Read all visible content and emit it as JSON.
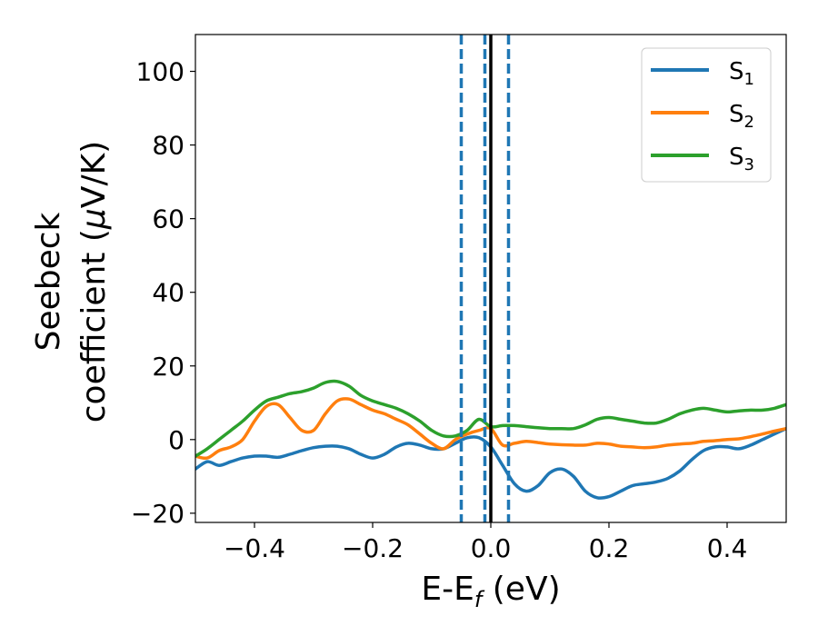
{
  "chart_data": {
    "type": "line",
    "xlabel": {
      "main": "E-E",
      "sub": "f",
      "unit": " (eV)"
    },
    "ylabel": {
      "line1": "Seebeck",
      "line2_pre": "coefficient  (",
      "mu": "μ",
      "line2_post": "V/K)"
    },
    "xlim": [
      -0.5,
      0.5
    ],
    "ylim": [
      -22.5,
      110
    ],
    "xticks": [
      -0.4,
      -0.2,
      0.0,
      0.2,
      0.4
    ],
    "xtick_labels": [
      "−0.4",
      "−0.2",
      "0.0",
      "0.2",
      "0.4"
    ],
    "yticks": [
      -20,
      0,
      20,
      40,
      60,
      80,
      100
    ],
    "ytick_labels": [
      "−20",
      "0",
      "20",
      "40",
      "60",
      "80",
      "100"
    ],
    "grid": false,
    "legend_position": "top-right",
    "vlines_dashed": [
      -0.05,
      -0.01,
      0.03
    ],
    "vline_solid": 0.0,
    "vline_dashed_color": "#1f77b4",
    "vline_solid_color": "#000000",
    "series": [
      {
        "name": "S",
        "sub": "1",
        "color": "#1f77b4",
        "points": [
          [
            -0.5,
            -8
          ],
          [
            -0.48,
            -6
          ],
          [
            -0.46,
            -7
          ],
          [
            -0.44,
            -6
          ],
          [
            -0.42,
            -5
          ],
          [
            -0.4,
            -4.5
          ],
          [
            -0.38,
            -4.5
          ],
          [
            -0.36,
            -4.8
          ],
          [
            -0.34,
            -4
          ],
          [
            -0.32,
            -3
          ],
          [
            -0.3,
            -2.2
          ],
          [
            -0.28,
            -1.8
          ],
          [
            -0.26,
            -1.8
          ],
          [
            -0.24,
            -2.5
          ],
          [
            -0.22,
            -4
          ],
          [
            -0.2,
            -5
          ],
          [
            -0.18,
            -4
          ],
          [
            -0.16,
            -2
          ],
          [
            -0.14,
            -1
          ],
          [
            -0.12,
            -1.5
          ],
          [
            -0.1,
            -2.5
          ],
          [
            -0.08,
            -2.5
          ],
          [
            -0.06,
            -1
          ],
          [
            -0.04,
            0.5
          ],
          [
            -0.02,
            0.5
          ],
          [
            0.0,
            -2
          ],
          [
            0.02,
            -7
          ],
          [
            0.04,
            -12
          ],
          [
            0.06,
            -14
          ],
          [
            0.08,
            -12.5
          ],
          [
            0.1,
            -9
          ],
          [
            0.12,
            -8
          ],
          [
            0.14,
            -10
          ],
          [
            0.16,
            -14
          ],
          [
            0.18,
            -15.8
          ],
          [
            0.2,
            -15.5
          ],
          [
            0.22,
            -14
          ],
          [
            0.24,
            -12.5
          ],
          [
            0.26,
            -12
          ],
          [
            0.28,
            -11.5
          ],
          [
            0.3,
            -10.5
          ],
          [
            0.32,
            -8.5
          ],
          [
            0.34,
            -5.5
          ],
          [
            0.36,
            -3
          ],
          [
            0.38,
            -2
          ],
          [
            0.4,
            -2
          ],
          [
            0.42,
            -2.5
          ],
          [
            0.44,
            -1.5
          ],
          [
            0.46,
            0
          ],
          [
            0.48,
            1.5
          ],
          [
            0.5,
            3
          ]
        ]
      },
      {
        "name": "S",
        "sub": "2",
        "color": "#ff7f0e",
        "points": [
          [
            -0.5,
            -4.5
          ],
          [
            -0.48,
            -5
          ],
          [
            -0.46,
            -3
          ],
          [
            -0.44,
            -2
          ],
          [
            -0.42,
            0
          ],
          [
            -0.4,
            5
          ],
          [
            -0.38,
            9
          ],
          [
            -0.36,
            9.5
          ],
          [
            -0.34,
            6
          ],
          [
            -0.32,
            2.5
          ],
          [
            -0.3,
            2.5
          ],
          [
            -0.28,
            7
          ],
          [
            -0.26,
            10.5
          ],
          [
            -0.24,
            11
          ],
          [
            -0.22,
            9.5
          ],
          [
            -0.2,
            8
          ],
          [
            -0.18,
            7
          ],
          [
            -0.16,
            5.5
          ],
          [
            -0.14,
            4
          ],
          [
            -0.12,
            1.5
          ],
          [
            -0.1,
            -1
          ],
          [
            -0.08,
            -2.5
          ],
          [
            -0.06,
            0
          ],
          [
            -0.04,
            1.5
          ],
          [
            -0.02,
            2.5
          ],
          [
            0.0,
            3
          ],
          [
            0.02,
            -1.5
          ],
          [
            0.04,
            -1
          ],
          [
            0.06,
            -0.5
          ],
          [
            0.08,
            -0.8
          ],
          [
            0.1,
            -1.2
          ],
          [
            0.14,
            -1.5
          ],
          [
            0.16,
            -1.5
          ],
          [
            0.18,
            -1
          ],
          [
            0.2,
            -1.2
          ],
          [
            0.22,
            -1.8
          ],
          [
            0.24,
            -2
          ],
          [
            0.26,
            -2.2
          ],
          [
            0.28,
            -2
          ],
          [
            0.3,
            -1.5
          ],
          [
            0.32,
            -1.2
          ],
          [
            0.34,
            -1
          ],
          [
            0.36,
            -0.5
          ],
          [
            0.38,
            -0.3
          ],
          [
            0.4,
            0
          ],
          [
            0.42,
            0.2
          ],
          [
            0.44,
            0.8
          ],
          [
            0.46,
            1.5
          ],
          [
            0.48,
            2.3
          ],
          [
            0.5,
            3
          ]
        ]
      },
      {
        "name": "S",
        "sub": "3",
        "color": "#2ca02c",
        "points": [
          [
            -0.5,
            -4.5
          ],
          [
            -0.48,
            -2.5
          ],
          [
            -0.46,
            0
          ],
          [
            -0.44,
            2.5
          ],
          [
            -0.42,
            5
          ],
          [
            -0.4,
            8
          ],
          [
            -0.38,
            10.5
          ],
          [
            -0.36,
            11.5
          ],
          [
            -0.34,
            12.5
          ],
          [
            -0.32,
            13
          ],
          [
            -0.3,
            14
          ],
          [
            -0.28,
            15.5
          ],
          [
            -0.26,
            15.8
          ],
          [
            -0.24,
            14.5
          ],
          [
            -0.22,
            12
          ],
          [
            -0.2,
            10.5
          ],
          [
            -0.18,
            9.5
          ],
          [
            -0.16,
            8.5
          ],
          [
            -0.14,
            7
          ],
          [
            -0.12,
            5
          ],
          [
            -0.1,
            2.5
          ],
          [
            -0.08,
            1
          ],
          [
            -0.06,
            1
          ],
          [
            -0.04,
            2.5
          ],
          [
            -0.02,
            5.5
          ],
          [
            0.0,
            3.5
          ],
          [
            0.02,
            3.8
          ],
          [
            0.04,
            3.8
          ],
          [
            0.06,
            3.5
          ],
          [
            0.08,
            3.2
          ],
          [
            0.1,
            3
          ],
          [
            0.12,
            3
          ],
          [
            0.14,
            3
          ],
          [
            0.16,
            4
          ],
          [
            0.18,
            5.5
          ],
          [
            0.2,
            6
          ],
          [
            0.22,
            5.5
          ],
          [
            0.24,
            5
          ],
          [
            0.26,
            4.5
          ],
          [
            0.28,
            4.5
          ],
          [
            0.3,
            5.5
          ],
          [
            0.32,
            7
          ],
          [
            0.34,
            8
          ],
          [
            0.36,
            8.5
          ],
          [
            0.38,
            8
          ],
          [
            0.4,
            7.5
          ],
          [
            0.42,
            7.8
          ],
          [
            0.44,
            8
          ],
          [
            0.46,
            8
          ],
          [
            0.48,
            8.5
          ],
          [
            0.5,
            9.5
          ]
        ]
      }
    ]
  }
}
